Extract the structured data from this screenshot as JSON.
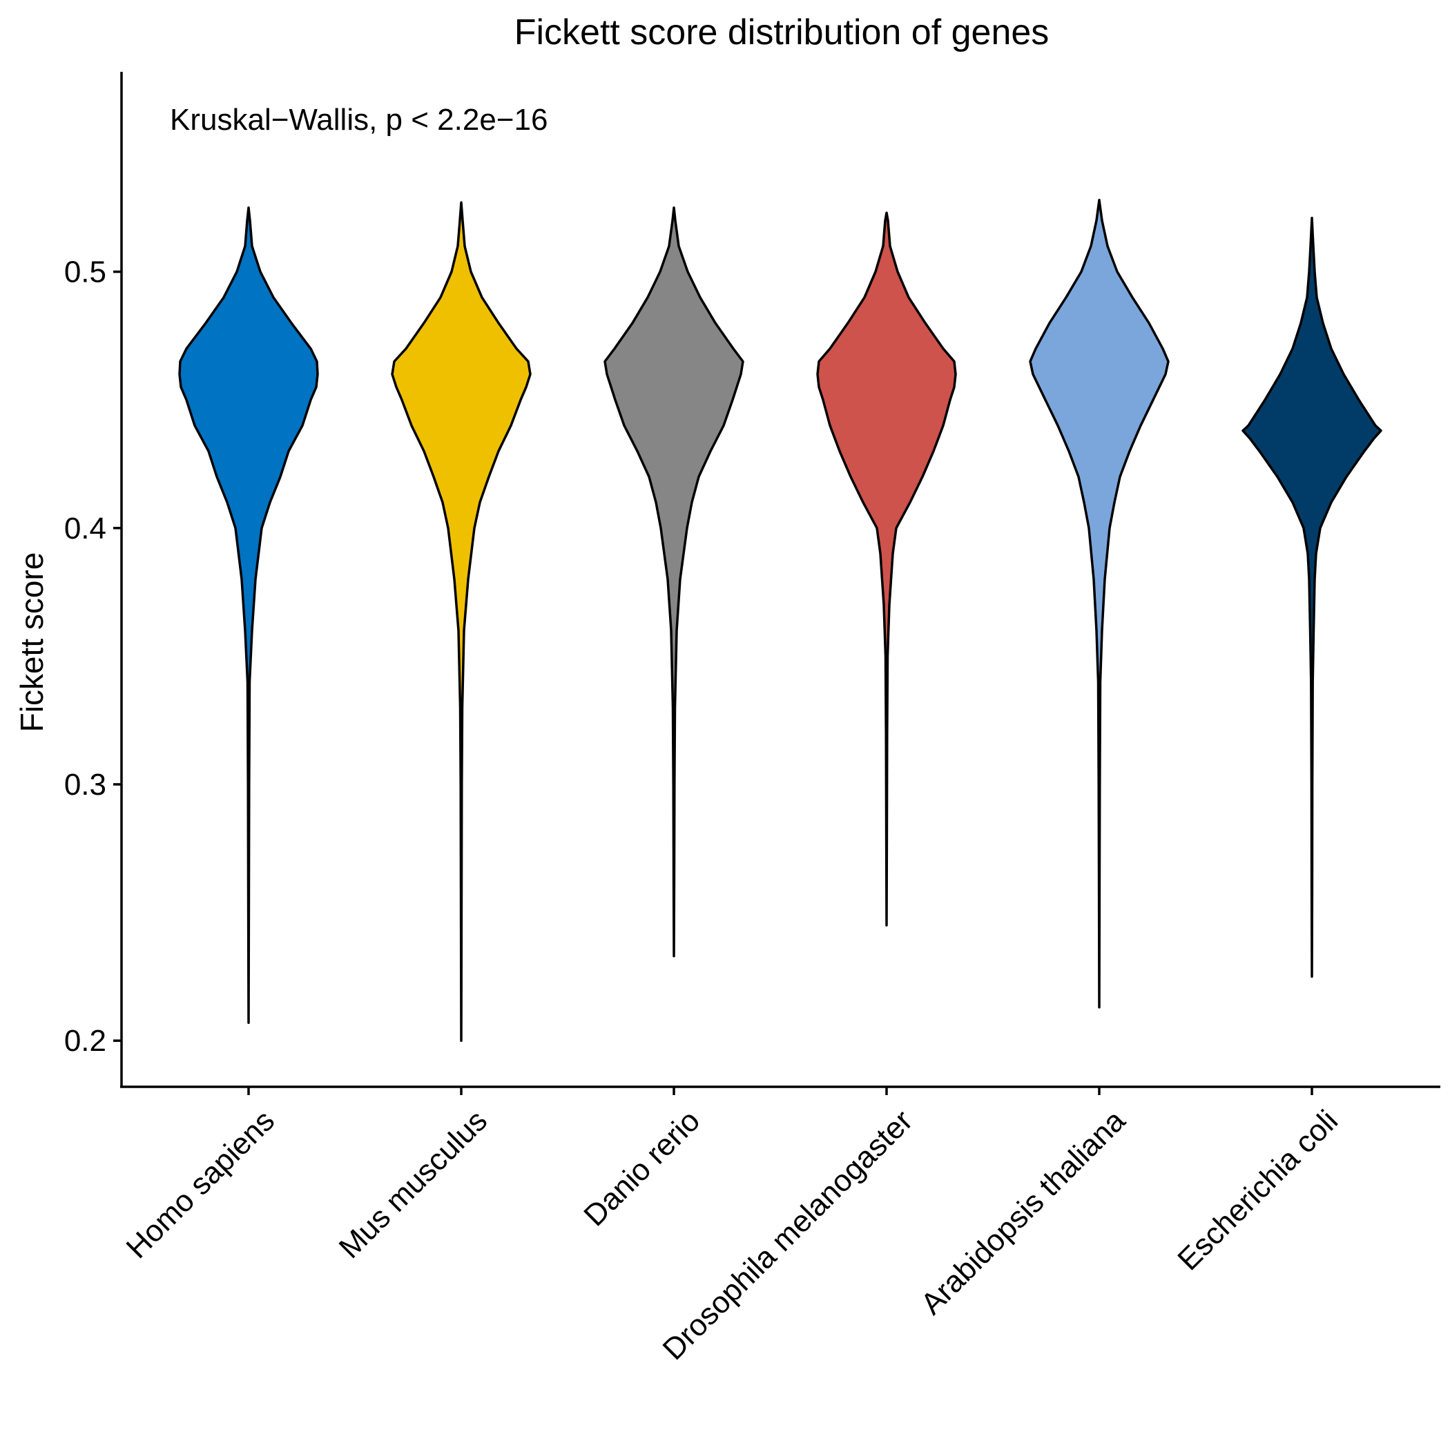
{
  "chart_data": {
    "type": "violin",
    "title": "Fickett score distribution of genes",
    "xlabel": "",
    "ylabel": "Fickett score",
    "annotation": "Kruskal−Wallis, p < 2.2e−16",
    "ylim": [
      0.182,
      0.578
    ],
    "yticks": [
      0.2,
      0.3,
      0.4,
      0.5
    ],
    "ytick_labels": [
      "0.2",
      "0.3",
      "0.4",
      "0.5"
    ],
    "grid": false,
    "legend": "none",
    "categories": [
      "Homo sapiens",
      "Mus musculus",
      "Danio rerio",
      "Drosophila melanogaster",
      "Arabidopsis thaliana",
      "Escherichia coli"
    ],
    "series": [
      {
        "category": "Homo sapiens",
        "color": "#0073C2",
        "min": 0.207,
        "max": 0.525,
        "profile": [
          [
            0.207,
            0
          ],
          [
            0.25,
            0.004
          ],
          [
            0.3,
            0.008
          ],
          [
            0.34,
            0.015
          ],
          [
            0.36,
            0.05
          ],
          [
            0.38,
            0.1
          ],
          [
            0.4,
            0.19
          ],
          [
            0.41,
            0.31
          ],
          [
            0.42,
            0.46
          ],
          [
            0.43,
            0.58
          ],
          [
            0.44,
            0.78
          ],
          [
            0.45,
            0.9
          ],
          [
            0.455,
            0.98
          ],
          [
            0.46,
            1.0
          ],
          [
            0.465,
            0.99
          ],
          [
            0.47,
            0.9
          ],
          [
            0.48,
            0.62
          ],
          [
            0.49,
            0.36
          ],
          [
            0.5,
            0.17
          ],
          [
            0.51,
            0.05
          ],
          [
            0.52,
            0.02
          ],
          [
            0.525,
            0
          ]
        ]
      },
      {
        "category": "Mus musculus",
        "color": "#EFC000",
        "min": 0.2,
        "max": 0.527,
        "profile": [
          [
            0.2,
            0
          ],
          [
            0.25,
            0.004
          ],
          [
            0.3,
            0.008
          ],
          [
            0.33,
            0.015
          ],
          [
            0.36,
            0.04
          ],
          [
            0.38,
            0.1
          ],
          [
            0.4,
            0.19
          ],
          [
            0.41,
            0.27
          ],
          [
            0.42,
            0.4
          ],
          [
            0.43,
            0.54
          ],
          [
            0.44,
            0.72
          ],
          [
            0.45,
            0.86
          ],
          [
            0.455,
            0.94
          ],
          [
            0.46,
            1.0
          ],
          [
            0.465,
            0.97
          ],
          [
            0.47,
            0.8
          ],
          [
            0.48,
            0.54
          ],
          [
            0.49,
            0.3
          ],
          [
            0.5,
            0.14
          ],
          [
            0.51,
            0.05
          ],
          [
            0.52,
            0.02
          ],
          [
            0.527,
            0
          ]
        ]
      },
      {
        "category": "Danio rerio",
        "color": "#868686",
        "min": 0.233,
        "max": 0.525,
        "profile": [
          [
            0.233,
            0
          ],
          [
            0.26,
            0.004
          ],
          [
            0.3,
            0.008
          ],
          [
            0.33,
            0.015
          ],
          [
            0.36,
            0.04
          ],
          [
            0.38,
            0.09
          ],
          [
            0.4,
            0.19
          ],
          [
            0.41,
            0.26
          ],
          [
            0.42,
            0.36
          ],
          [
            0.43,
            0.53
          ],
          [
            0.44,
            0.72
          ],
          [
            0.45,
            0.85
          ],
          [
            0.46,
            0.97
          ],
          [
            0.465,
            1.0
          ],
          [
            0.47,
            0.86
          ],
          [
            0.48,
            0.6
          ],
          [
            0.49,
            0.38
          ],
          [
            0.5,
            0.2
          ],
          [
            0.51,
            0.07
          ],
          [
            0.52,
            0.02
          ],
          [
            0.525,
            0
          ]
        ]
      },
      {
        "category": "Drosophila melanogaster",
        "color": "#CD534C",
        "min": 0.245,
        "max": 0.523,
        "profile": [
          [
            0.245,
            0
          ],
          [
            0.28,
            0.004
          ],
          [
            0.32,
            0.008
          ],
          [
            0.35,
            0.015
          ],
          [
            0.37,
            0.04
          ],
          [
            0.39,
            0.09
          ],
          [
            0.4,
            0.14
          ],
          [
            0.41,
            0.34
          ],
          [
            0.42,
            0.52
          ],
          [
            0.43,
            0.68
          ],
          [
            0.44,
            0.82
          ],
          [
            0.45,
            0.92
          ],
          [
            0.455,
            0.98
          ],
          [
            0.46,
            1.0
          ],
          [
            0.465,
            0.98
          ],
          [
            0.47,
            0.82
          ],
          [
            0.48,
            0.56
          ],
          [
            0.49,
            0.32
          ],
          [
            0.5,
            0.16
          ],
          [
            0.51,
            0.05
          ],
          [
            0.52,
            0.02
          ],
          [
            0.523,
            0
          ]
        ]
      },
      {
        "category": "Arabidopsis thaliana",
        "color": "#7AA6DC",
        "min": 0.213,
        "max": 0.528,
        "profile": [
          [
            0.213,
            0
          ],
          [
            0.26,
            0.004
          ],
          [
            0.3,
            0.008
          ],
          [
            0.34,
            0.015
          ],
          [
            0.36,
            0.04
          ],
          [
            0.38,
            0.08
          ],
          [
            0.4,
            0.15
          ],
          [
            0.41,
            0.22
          ],
          [
            0.42,
            0.3
          ],
          [
            0.43,
            0.44
          ],
          [
            0.44,
            0.6
          ],
          [
            0.45,
            0.78
          ],
          [
            0.46,
            0.96
          ],
          [
            0.465,
            1.0
          ],
          [
            0.47,
            0.92
          ],
          [
            0.48,
            0.72
          ],
          [
            0.49,
            0.48
          ],
          [
            0.5,
            0.26
          ],
          [
            0.51,
            0.12
          ],
          [
            0.52,
            0.04
          ],
          [
            0.528,
            0
          ]
        ]
      },
      {
        "category": "Escherichia coli",
        "color": "#003C67",
        "min": 0.225,
        "max": 0.521,
        "profile": [
          [
            0.225,
            0
          ],
          [
            0.26,
            0.004
          ],
          [
            0.3,
            0.006
          ],
          [
            0.34,
            0.012
          ],
          [
            0.36,
            0.025
          ],
          [
            0.38,
            0.04
          ],
          [
            0.39,
            0.06
          ],
          [
            0.4,
            0.12
          ],
          [
            0.41,
            0.28
          ],
          [
            0.42,
            0.5
          ],
          [
            0.43,
            0.76
          ],
          [
            0.435,
            0.9
          ],
          [
            0.438,
            1.0
          ],
          [
            0.44,
            0.92
          ],
          [
            0.45,
            0.68
          ],
          [
            0.46,
            0.46
          ],
          [
            0.47,
            0.28
          ],
          [
            0.48,
            0.16
          ],
          [
            0.49,
            0.07
          ],
          [
            0.5,
            0.04
          ],
          [
            0.51,
            0.02
          ],
          [
            0.521,
            0
          ]
        ]
      }
    ]
  }
}
